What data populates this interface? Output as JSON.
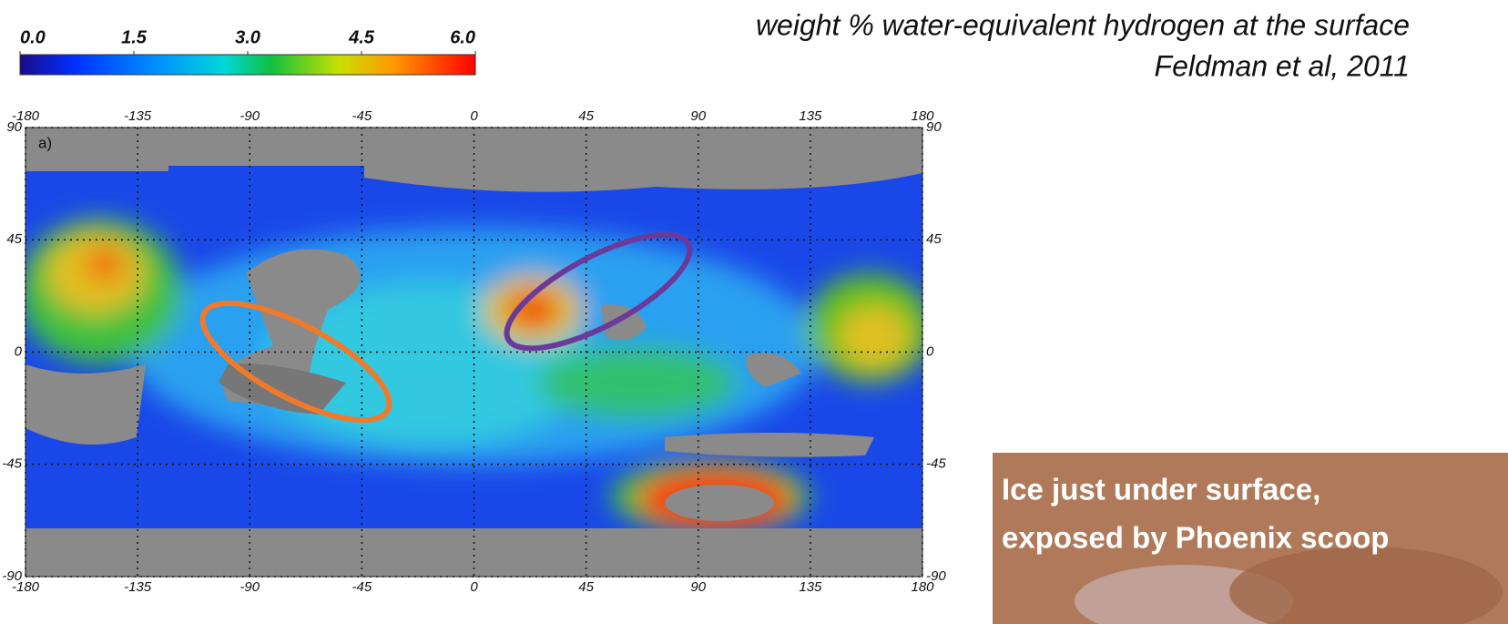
{
  "colorbar": {
    "min": 0,
    "max": 6,
    "ticks": [
      {
        "value": 0,
        "label": "0.0"
      },
      {
        "value": 1.5,
        "label": "1.5"
      },
      {
        "value": 3,
        "label": "3.0"
      },
      {
        "value": 4.5,
        "label": "4.5"
      },
      {
        "value": 6,
        "label": "6.0"
      }
    ]
  },
  "title": {
    "line1": "weight % water-equivalent hydrogen at the surface",
    "line2": "Feldman et al, 2011"
  },
  "map": {
    "panel_label": "a)",
    "lon_ticks": [
      -180,
      -135,
      -90,
      -45,
      0,
      45,
      90,
      135,
      180
    ],
    "lat_ticks": [
      90,
      45,
      0,
      -45,
      -90
    ]
  },
  "photo": {
    "caption_line1": "Ice just under surface,",
    "caption_line2": "exposed by Phoenix scoop"
  }
}
